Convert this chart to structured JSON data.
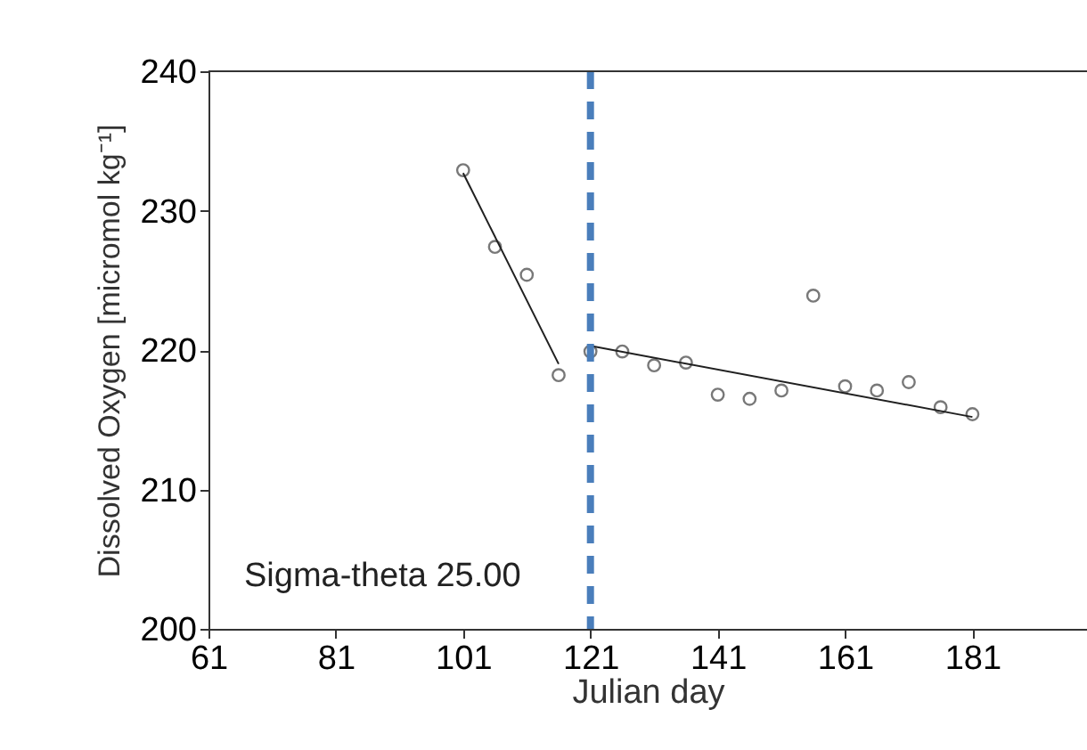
{
  "chart_data": {
    "type": "scatter",
    "xlabel": "Julian day",
    "ylabel": "Dissolved Oxygen [micromol kg⁻¹]",
    "annotations": [
      "Sigma-theta 25.00"
    ],
    "xlim": [
      61,
      199
    ],
    "xticks": [
      61,
      81,
      101,
      121,
      141,
      161,
      181
    ],
    "ylim": [
      200,
      240
    ],
    "yticks": [
      200,
      210,
      220,
      230,
      240
    ],
    "grid": false,
    "series": [
      {
        "marker": "circle",
        "color": "#404040",
        "x": [
          101,
          106,
          111,
          116,
          121,
          126,
          131,
          136,
          141,
          146,
          151,
          156,
          161,
          166,
          171,
          176,
          181
        ],
        "values": [
          232.9,
          227.4,
          225.4,
          218.2,
          219.9,
          219.9,
          218.9,
          219.1,
          216.8,
          216.5,
          217.1,
          223.9,
          217.4,
          217.1,
          217.7,
          215.9,
          215.4
        ]
      },
      {
        "type": "line",
        "color": "#202020",
        "line_style": "solid",
        "x": [
          101,
          116
        ],
        "values": [
          232.7,
          219.0
        ]
      },
      {
        "type": "line",
        "color": "#202020",
        "line_style": "solid",
        "x": [
          121,
          181
        ],
        "values": [
          220.3,
          215.2
        ]
      }
    ],
    "ref_lines": [
      {
        "axis": "x",
        "value": 121,
        "color": "#4a7ebb",
        "line_style": "dashed"
      }
    ]
  }
}
